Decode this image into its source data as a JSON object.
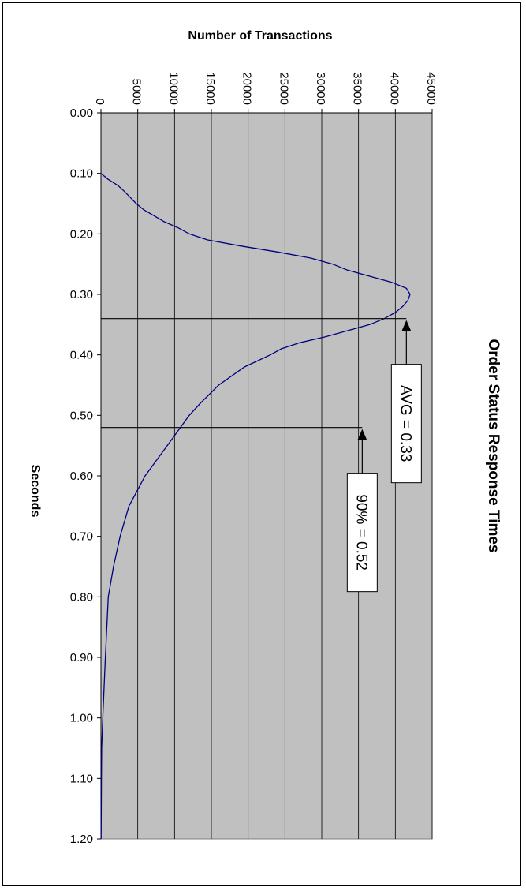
{
  "chart_data": {
    "type": "line",
    "title": "Order Status Response Times",
    "xlabel": "Seconds",
    "ylabel": "Number of Transactions",
    "orientation": "rotated",
    "xlim": [
      0.0,
      1.2
    ],
    "ylim": [
      0,
      45000
    ],
    "x_ticks": [
      "0.00",
      "0.10",
      "0.20",
      "0.30",
      "0.40",
      "0.50",
      "0.60",
      "0.70",
      "0.80",
      "0.90",
      "1.00",
      "1.10",
      "1.20"
    ],
    "y_ticks": [
      "0",
      "5000",
      "10000",
      "15000",
      "20000",
      "25000",
      "30000",
      "35000",
      "40000",
      "45000"
    ],
    "grid": true,
    "background_color": "#C0C0C0",
    "series_color": "#000080",
    "series": [
      {
        "x": [
          0.1,
          0.11,
          0.12,
          0.13,
          0.14,
          0.15,
          0.16,
          0.17,
          0.18,
          0.19,
          0.2,
          0.21,
          0.22,
          0.23,
          0.24,
          0.25,
          0.26,
          0.27,
          0.28,
          0.29,
          0.3,
          0.31,
          0.32,
          0.33,
          0.34,
          0.35,
          0.36,
          0.37,
          0.38,
          0.39,
          0.4,
          0.42,
          0.45,
          0.48,
          0.5,
          0.55,
          0.6,
          0.65,
          0.7,
          0.75,
          0.8,
          0.9,
          1.0,
          1.05,
          1.1,
          1.2
        ],
        "y": [
          0,
          1000,
          2300,
          3200,
          4000,
          4800,
          5800,
          7200,
          8600,
          10500,
          12000,
          14500,
          19000,
          24000,
          28500,
          31500,
          33500,
          36500,
          39500,
          41500,
          42000,
          41700,
          41000,
          40000,
          38500,
          36500,
          33500,
          30500,
          27000,
          24500,
          23000,
          19500,
          16000,
          13500,
          12000,
          9000,
          6000,
          3800,
          2600,
          1700,
          1000,
          600,
          250,
          100,
          60,
          20
        ]
      }
    ],
    "annotations": [
      {
        "text": "AVG = 0.33",
        "x": 0.34,
        "y": 41500
      },
      {
        "text": "90% = 0.52",
        "x": 0.52,
        "y": 35500
      }
    ]
  }
}
